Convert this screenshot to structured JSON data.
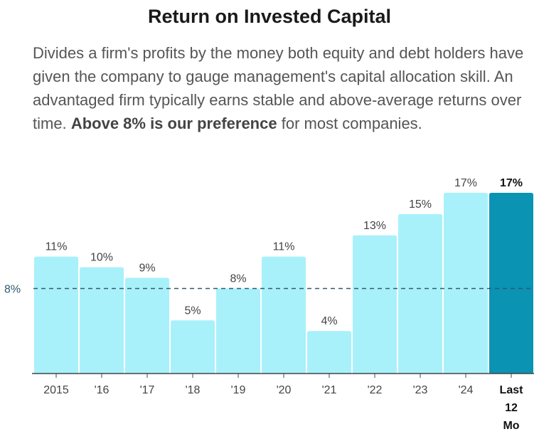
{
  "title": "Return on Invested Capital",
  "description": {
    "text": "Divides a firm's profits by the money both equity and debt holders have given the company to gauge management's capital allocation skill. An advantaged firm typically earns stable and above-average returns over time.",
    "emphasis": "Above 8% is our preference",
    "tail": "for most companies."
  },
  "chart_data": {
    "type": "bar",
    "categories": [
      "2015",
      "'16",
      "'17",
      "'18",
      "'19",
      "'20",
      "'21",
      "'22",
      "'23",
      "'24",
      "Last 12 Mo"
    ],
    "values": [
      11,
      10,
      9,
      5,
      8,
      11,
      4,
      13,
      15,
      17,
      17
    ],
    "data_labels": [
      "11%",
      "10%",
      "9%",
      "5%",
      "8%",
      "11%",
      "4%",
      "13%",
      "15%",
      "17%",
      "17%"
    ],
    "highlighted_category": "Last 12 Mo",
    "ylim": [
      0,
      17
    ],
    "reference_line": {
      "value": 8,
      "label": "8%",
      "style": "dashed"
    },
    "grid": false,
    "colors": {
      "bar": "#a8f1fb",
      "highlight_bar": "#0a93b3",
      "reference": "#2e5a70",
      "axis": "#444444"
    }
  }
}
